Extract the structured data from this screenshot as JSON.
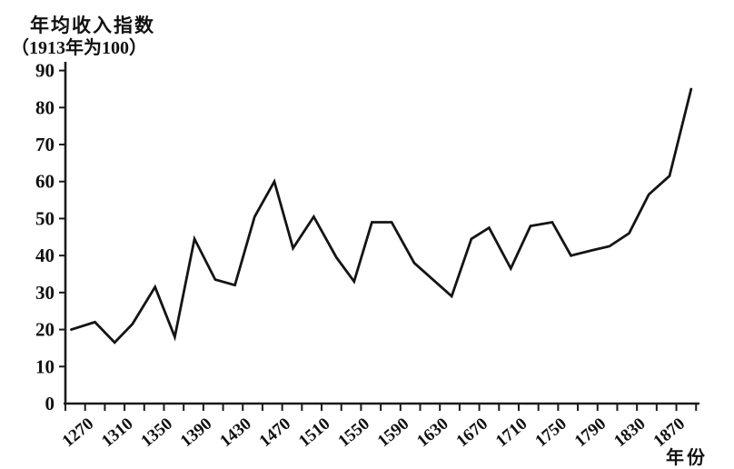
{
  "page": {
    "background": "#ffffff"
  },
  "chart_data": {
    "type": "line",
    "title_line1": "年均收入指数",
    "title_line2": "（1913年为100）",
    "xlabel": "年份",
    "x_range": [
      1270,
      1913
    ],
    "ylim": [
      0,
      90
    ],
    "y_ticks": [
      0,
      10,
      20,
      30,
      40,
      50,
      60,
      70,
      80,
      90
    ],
    "x_minor_tick_start": 1270,
    "x_minor_tick_step": 20,
    "x_minor_tick_end": 1910,
    "x_major_ticks": [
      {
        "year": 1270,
        "label": "1270"
      },
      {
        "year": 1310,
        "label": "1310"
      },
      {
        "year": 1350,
        "label": "1350"
      },
      {
        "year": 1390,
        "label": "1390"
      },
      {
        "year": 1430,
        "label": "1430"
      },
      {
        "year": 1470,
        "label": "1470"
      },
      {
        "year": 1510,
        "label": "1510"
      },
      {
        "year": 1550,
        "label": "1550"
      },
      {
        "year": 1590,
        "label": "1590"
      },
      {
        "year": 1630,
        "label": "1630"
      },
      {
        "year": 1670,
        "label": "1670"
      },
      {
        "year": 1710,
        "label": "1710"
      },
      {
        "year": 1750,
        "label": "1750"
      },
      {
        "year": 1790,
        "label": "1790"
      },
      {
        "year": 1830,
        "label": "1830"
      },
      {
        "year": 1870,
        "label": "1870"
      }
    ],
    "grid": false,
    "legend": "none",
    "colors": {
      "line": "#141414",
      "axis": "#1a1a1a",
      "background": "#ffffff"
    },
    "series": [
      {
        "name": "年均收入指数",
        "points": [
          [
            1276,
            20
          ],
          [
            1300,
            22
          ],
          [
            1320,
            16.5
          ],
          [
            1338,
            21.5
          ],
          [
            1361,
            31.5
          ],
          [
            1381,
            18
          ],
          [
            1401,
            44.5
          ],
          [
            1422,
            33.5
          ],
          [
            1442,
            32
          ],
          [
            1462,
            50.5
          ],
          [
            1482,
            60
          ],
          [
            1501,
            42
          ],
          [
            1522,
            50.5
          ],
          [
            1545,
            39.5
          ],
          [
            1563,
            33
          ],
          [
            1581,
            49
          ],
          [
            1601,
            49
          ],
          [
            1624,
            38
          ],
          [
            1662,
            29
          ],
          [
            1682,
            44.5
          ],
          [
            1700,
            47.5
          ],
          [
            1722,
            36.5
          ],
          [
            1742,
            48
          ],
          [
            1764,
            49
          ],
          [
            1783,
            40
          ],
          [
            1806,
            41.5
          ],
          [
            1822,
            42.5
          ],
          [
            1842,
            46
          ],
          [
            1862,
            56.5
          ],
          [
            1883,
            61.5
          ],
          [
            1905,
            85
          ]
        ]
      }
    ]
  }
}
